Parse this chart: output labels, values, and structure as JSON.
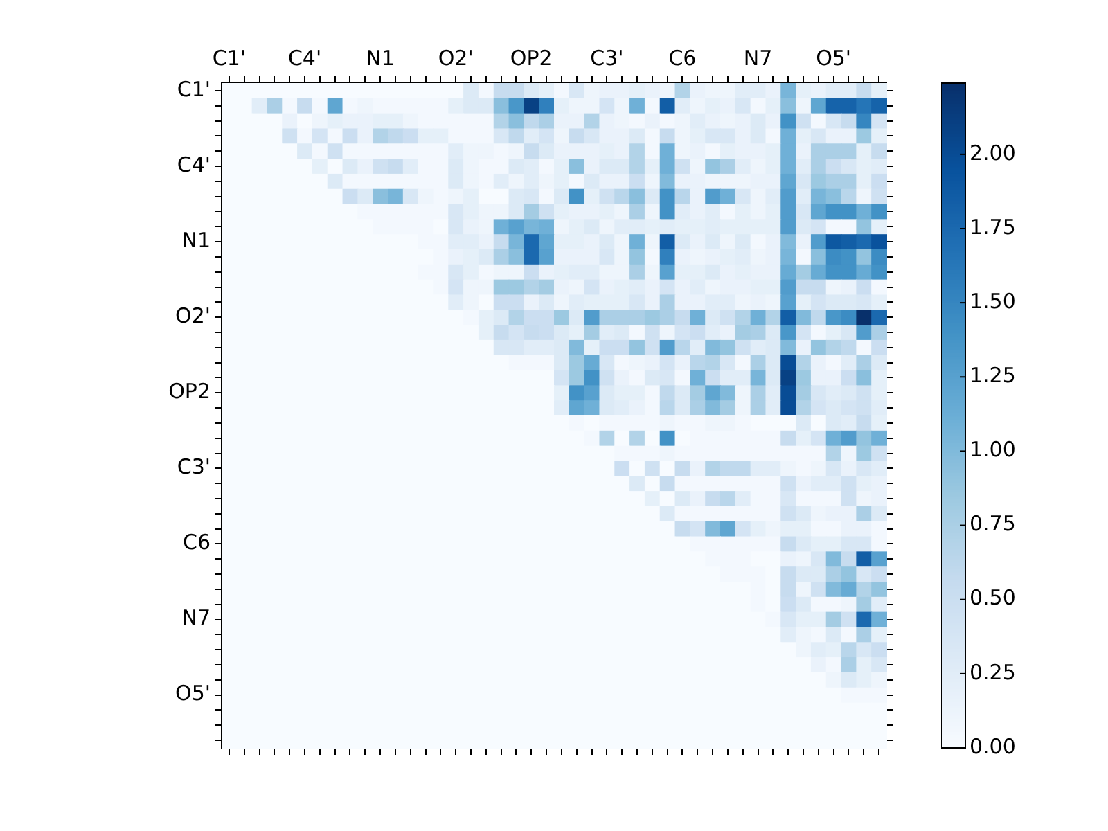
{
  "chart_data": {
    "type": "heatmap",
    "categories": [
      "C1'",
      null,
      null,
      null,
      null,
      "C4'",
      null,
      null,
      null,
      null,
      "N1",
      null,
      null,
      null,
      null,
      "O2'",
      null,
      null,
      null,
      null,
      "OP2",
      null,
      null,
      null,
      null,
      "C3'",
      null,
      null,
      null,
      null,
      "C6",
      null,
      null,
      null,
      null,
      "N7",
      null,
      null,
      null,
      null,
      "O5'",
      null,
      null,
      null
    ],
    "y_categories": [
      "C1'",
      null,
      null,
      null,
      null,
      "C4'",
      null,
      null,
      null,
      null,
      "N1",
      null,
      null,
      null,
      null,
      "O2'",
      null,
      null,
      null,
      null,
      "OP2",
      null,
      null,
      null,
      null,
      "C3'",
      null,
      null,
      null,
      null,
      "C6",
      null,
      null,
      null,
      null,
      "N7",
      null,
      null,
      null,
      null,
      "O5'",
      null,
      null,
      null
    ],
    "clim": [
      0,
      2.24
    ],
    "cticks": [
      {
        "value": 0,
        "label": "0.00"
      },
      {
        "value": 0.25,
        "label": "0.25"
      },
      {
        "value": 0.5,
        "label": "0.50"
      },
      {
        "value": 0.75,
        "label": "0.75"
      },
      {
        "value": 1,
        "label": "1.00"
      },
      {
        "value": 1.25,
        "label": "1.25"
      },
      {
        "value": 1.5,
        "label": "1.50"
      },
      {
        "value": 1.75,
        "label": "1.75"
      },
      {
        "value": 2,
        "label": "2.00"
      }
    ],
    "cells": [
      [
        0,
        0,
        0,
        0,
        0,
        0,
        0,
        0,
        0,
        0,
        0,
        0,
        0,
        0,
        0,
        0,
        0.3,
        0.05,
        0.55,
        0.55,
        0.3,
        0.2,
        0.05,
        0.35,
        0.1,
        0.15,
        0.15,
        0.2,
        0.15,
        0.1,
        0.7,
        0.15,
        0.1,
        0.1,
        0.25,
        0.25,
        0.15,
        1.05,
        0.2,
        0.15,
        0.25,
        0.25,
        0.55,
        0.2
      ],
      [
        0,
        0,
        0.25,
        0.75,
        0.05,
        0.55,
        0.05,
        1.2,
        0.05,
        0.1,
        0.05,
        0.05,
        0.05,
        0.05,
        0.05,
        0.2,
        0.3,
        0.3,
        0.95,
        1.35,
        2.1,
        1.55,
        0.2,
        0.1,
        0.1,
        0.4,
        0.1,
        1.1,
        0.05,
        1.85,
        0.25,
        0.1,
        0.2,
        0.15,
        0.35,
        0.05,
        0.2,
        0.95,
        0.1,
        1.2,
        1.8,
        1.8,
        1.65,
        1.8
      ],
      [
        0,
        0,
        0,
        0,
        0.15,
        0,
        0.1,
        0.2,
        0.15,
        0.15,
        0.2,
        0.2,
        0.1,
        0.05,
        0.05,
        0.05,
        0.05,
        0.05,
        0.7,
        0.95,
        0.6,
        0.75,
        0.15,
        0.15,
        0.7,
        0.15,
        0.1,
        0.05,
        0.15,
        0.05,
        0.1,
        0.25,
        0.15,
        0.1,
        0.15,
        0.3,
        0.15,
        1.4,
        0.45,
        0.05,
        0.35,
        0.55,
        1.5,
        0.4
      ],
      [
        0,
        0,
        0,
        0,
        0.45,
        0.05,
        0.4,
        0.05,
        0.5,
        0.15,
        0.7,
        0.6,
        0.5,
        0.2,
        0.2,
        0.05,
        0.05,
        0.05,
        0.35,
        0.6,
        0.25,
        0.4,
        0.1,
        0.55,
        0.35,
        0.15,
        0.15,
        0.3,
        0.05,
        0.55,
        0.1,
        0.2,
        0.35,
        0.35,
        0.15,
        0.3,
        0.05,
        1.1,
        0.2,
        0.35,
        0.15,
        0.15,
        0.85,
        0.2
      ],
      [
        0,
        0,
        0,
        0,
        0,
        0.3,
        0.05,
        0.45,
        0.05,
        0.05,
        0.05,
        0.05,
        0.05,
        0.05,
        0.05,
        0.25,
        0.1,
        0.1,
        0.05,
        0.1,
        0.55,
        0.3,
        0.15,
        0.15,
        0.15,
        0.2,
        0.15,
        0.7,
        0.05,
        1.1,
        0.1,
        0.15,
        0.05,
        0.2,
        0.15,
        0.15,
        0.2,
        1.1,
        0.15,
        0.75,
        0.75,
        0.75,
        0.2,
        0.55
      ],
      [
        0,
        0,
        0,
        0,
        0,
        0,
        0.2,
        0,
        0.3,
        0.15,
        0.45,
        0.55,
        0.25,
        0.05,
        0.05,
        0.3,
        0.1,
        0.05,
        0.05,
        0.3,
        0.25,
        0.05,
        0.2,
        0.95,
        0.15,
        0.3,
        0.3,
        0.7,
        0.2,
        1.1,
        0.45,
        0.1,
        0.9,
        0.75,
        0.25,
        0.1,
        0.2,
        1.1,
        0.25,
        0.75,
        0.5,
        0.35,
        0.2,
        0.25
      ],
      [
        0,
        0,
        0,
        0,
        0,
        0,
        0,
        0.3,
        0.05,
        0.05,
        0.05,
        0.05,
        0.05,
        0.05,
        0.05,
        0.3,
        0.1,
        0.05,
        0.25,
        0.1,
        0.25,
        0.1,
        0.2,
        0.05,
        0.3,
        0.15,
        0.15,
        0.5,
        0.1,
        1.0,
        0.15,
        0.15,
        0.1,
        0.1,
        0.1,
        0.15,
        0.15,
        1.2,
        0.35,
        0.85,
        0.75,
        0.75,
        0.2,
        0.5
      ],
      [
        0,
        0,
        0,
        0,
        0,
        0,
        0,
        0,
        0.5,
        0.3,
        0.95,
        1.05,
        0.35,
        0.1,
        0.05,
        0.1,
        0.2,
        0,
        0,
        0.3,
        0.35,
        0.05,
        0.3,
        1.4,
        0.2,
        0.45,
        0.65,
        0.95,
        0.3,
        1.4,
        0.65,
        0.15,
        1.3,
        1.1,
        0.35,
        0.1,
        0.25,
        1.3,
        0.25,
        1.05,
        0.95,
        0.65,
        0.1,
        0.45
      ],
      [
        0,
        0,
        0,
        0,
        0,
        0,
        0,
        0,
        0,
        0.05,
        0.05,
        0.05,
        0.05,
        0.05,
        0.05,
        0.35,
        0.2,
        0.1,
        0.1,
        0.3,
        0.8,
        0.45,
        0.2,
        0.15,
        0.15,
        0.2,
        0.1,
        0.75,
        0.1,
        1.4,
        0.25,
        0.15,
        0.25,
        0.05,
        0.2,
        0.1,
        0.2,
        1.3,
        0.35,
        1.2,
        1.4,
        1.4,
        1.1,
        1.4
      ],
      [
        0,
        0,
        0,
        0,
        0,
        0,
        0,
        0,
        0,
        0,
        0.05,
        0.05,
        0.05,
        0.05,
        0,
        0.35,
        0.15,
        0.1,
        1.1,
        1.25,
        1.05,
        1.1,
        0.1,
        0.2,
        0.3,
        0.1,
        0.25,
        0.25,
        0.2,
        0.25,
        0.2,
        0.2,
        0.25,
        0.2,
        0.2,
        0.2,
        0.2,
        1.3,
        0.3,
        0.4,
        0.05,
        0.05,
        0.9,
        0.2
      ],
      [
        0,
        0,
        0,
        0,
        0,
        0,
        0,
        0,
        0,
        0,
        0,
        0,
        0,
        0.05,
        0.05,
        0.25,
        0.25,
        0.15,
        0.55,
        1.05,
        1.75,
        1.2,
        0.2,
        0.2,
        0.15,
        0.3,
        0.1,
        1.1,
        0.1,
        1.85,
        0.3,
        0.15,
        0.3,
        0.1,
        0.3,
        0.05,
        0.15,
        1.0,
        0.15,
        1.3,
        1.9,
        1.85,
        1.75,
        1.95
      ],
      [
        0,
        0,
        0,
        0,
        0,
        0,
        0,
        0,
        0,
        0,
        0,
        0,
        0,
        0,
        0.05,
        0.15,
        0.2,
        0.3,
        0.75,
        0.95,
        1.75,
        1.25,
        0.15,
        0.15,
        0.15,
        0.35,
        0.1,
        0.9,
        0.05,
        1.55,
        0.15,
        0.1,
        0.15,
        0.2,
        0.25,
        0.1,
        0.15,
        1.05,
        0.05,
        0.95,
        1.45,
        1.4,
        0.9,
        1.45
      ],
      [
        0,
        0,
        0,
        0,
        0,
        0,
        0,
        0,
        0,
        0,
        0,
        0,
        0,
        0.05,
        0.05,
        0.35,
        0.2,
        0.05,
        0.1,
        0.1,
        0.5,
        0.15,
        0.2,
        0.25,
        0.25,
        0.1,
        0.1,
        0.75,
        0.1,
        1.25,
        0.2,
        0.2,
        0.3,
        0.15,
        0.2,
        0.15,
        0.15,
        1.15,
        0.8,
        1.15,
        1.4,
        1.4,
        1.15,
        1.4
      ],
      [
        0,
        0,
        0,
        0,
        0,
        0,
        0,
        0,
        0,
        0,
        0,
        0,
        0,
        0,
        0.05,
        0.4,
        0.1,
        0.1,
        0.85,
        0.85,
        0.7,
        0.8,
        0.15,
        0.1,
        0.4,
        0.15,
        0.2,
        0.25,
        0.15,
        0.4,
        0.15,
        0.25,
        0.1,
        0.15,
        0.15,
        0.2,
        0.2,
        1.3,
        0.55,
        0.55,
        0.1,
        0.15,
        0.5,
        0.05
      ],
      [
        0,
        0,
        0,
        0,
        0,
        0,
        0,
        0,
        0,
        0,
        0,
        0,
        0,
        0,
        0,
        0.25,
        0.1,
        0,
        0.5,
        0.5,
        0.15,
        0.3,
        0.1,
        0.25,
        0.2,
        0.2,
        0.2,
        0.35,
        0.15,
        0.75,
        0.15,
        0.15,
        0.25,
        0.25,
        0.1,
        0.15,
        0.1,
        1.25,
        0.2,
        0.4,
        0.3,
        0.3,
        0.35,
        0.2
      ],
      [
        0,
        0,
        0,
        0,
        0,
        0,
        0,
        0,
        0,
        0,
        0,
        0,
        0,
        0,
        0,
        0,
        0.05,
        0.2,
        0.3,
        0.7,
        0.5,
        0.5,
        0.85,
        0.3,
        1.3,
        0.75,
        0.75,
        0.75,
        0.85,
        0.75,
        0.55,
        1.1,
        0.3,
        0.45,
        0.7,
        1.1,
        0.7,
        1.85,
        1.0,
        0.6,
        1.35,
        1.45,
        2.24,
        1.75
      ],
      [
        0,
        0,
        0,
        0,
        0,
        0,
        0,
        0,
        0,
        0,
        0,
        0,
        0,
        0,
        0,
        0,
        0,
        0.2,
        0.55,
        0.4,
        0.55,
        0.5,
        0.3,
        0.2,
        0.8,
        0.25,
        0.3,
        0.05,
        0.45,
        0.1,
        0.4,
        0.5,
        0.25,
        0.15,
        0.8,
        0.75,
        0.3,
        1.35,
        0.4,
        0.05,
        0.2,
        0.35,
        1.3,
        0.75
      ],
      [
        0,
        0,
        0,
        0,
        0,
        0,
        0,
        0,
        0,
        0,
        0,
        0,
        0,
        0,
        0,
        0,
        0,
        0,
        0.35,
        0.35,
        0.25,
        0.25,
        0.3,
        1.0,
        0.2,
        0.5,
        0.5,
        0.9,
        0.45,
        1.3,
        0.65,
        0.25,
        1.0,
        0.9,
        0.45,
        0.25,
        0.3,
        1.0,
        0.15,
        0.9,
        0.7,
        0.6,
        0.05,
        0.5
      ],
      [
        0,
        0,
        0,
        0,
        0,
        0,
        0,
        0,
        0,
        0,
        0,
        0,
        0,
        0,
        0,
        0,
        0,
        0,
        0,
        0.05,
        0.05,
        0.05,
        0.3,
        0.85,
        1.15,
        0.35,
        0.05,
        0.1,
        0.15,
        0.4,
        0.15,
        0.65,
        0.7,
        0.35,
        0.05,
        0.75,
        0.3,
        2.0,
        0.7,
        0.15,
        0.05,
        0.25,
        0.75,
        0.3
      ],
      [
        0,
        0,
        0,
        0,
        0,
        0,
        0,
        0,
        0,
        0,
        0,
        0,
        0,
        0,
        0,
        0,
        0,
        0,
        0,
        0,
        0,
        0,
        0.4,
        0.85,
        1.4,
        0.45,
        0.15,
        0.05,
        0.3,
        0.35,
        0.05,
        1.1,
        0.5,
        0.25,
        0.25,
        1.05,
        0.3,
        2.1,
        0.85,
        0.15,
        0.15,
        0.5,
        0.95,
        0.2
      ],
      [
        0,
        0,
        0,
        0,
        0,
        0,
        0,
        0,
        0,
        0,
        0,
        0,
        0,
        0,
        0,
        0,
        0,
        0,
        0,
        0,
        0,
        0,
        0.2,
        1.4,
        1.25,
        0.3,
        0.2,
        0.2,
        0.05,
        0.6,
        0.3,
        0.8,
        1.2,
        1.0,
        0.1,
        0.75,
        0.25,
        2.0,
        0.8,
        0.35,
        0.25,
        0.3,
        0.45,
        0.2
      ],
      [
        0,
        0,
        0,
        0,
        0,
        0,
        0,
        0,
        0,
        0,
        0,
        0,
        0,
        0,
        0,
        0,
        0,
        0,
        0,
        0,
        0,
        0,
        0.25,
        1.2,
        1.1,
        0.3,
        0.25,
        0.15,
        0.05,
        0.65,
        0.3,
        0.75,
        1.0,
        0.8,
        0.1,
        0.75,
        0.25,
        2.0,
        0.7,
        0.4,
        0.3,
        0.4,
        0.45,
        0.25
      ],
      [
        0,
        0,
        0,
        0,
        0,
        0,
        0,
        0,
        0,
        0,
        0,
        0,
        0,
        0,
        0,
        0,
        0,
        0,
        0,
        0,
        0,
        0,
        0,
        0.05,
        0,
        0.05,
        0.05,
        0.05,
        0.05,
        0.1,
        0.05,
        0.05,
        0.1,
        0.1,
        0.05,
        0,
        0,
        0,
        0.3,
        0,
        0.3,
        0.25,
        0.55,
        0.2
      ],
      [
        0,
        0,
        0,
        0,
        0,
        0,
        0,
        0,
        0,
        0,
        0,
        0,
        0,
        0,
        0,
        0,
        0,
        0,
        0,
        0,
        0,
        0,
        0,
        0,
        0.05,
        0.7,
        0,
        0.7,
        0,
        1.4,
        0,
        0.05,
        0.05,
        0.05,
        0.05,
        0.05,
        0.05,
        0.55,
        0.2,
        0.4,
        1.1,
        1.3,
        0.9,
        1.1
      ],
      [
        0,
        0,
        0,
        0,
        0,
        0,
        0,
        0,
        0,
        0,
        0,
        0,
        0,
        0,
        0,
        0,
        0,
        0,
        0,
        0,
        0,
        0,
        0,
        0,
        0,
        0,
        0.05,
        0.05,
        0.05,
        0.1,
        0.05,
        0.05,
        0.05,
        0.05,
        0.05,
        0.05,
        0.05,
        0.05,
        0.05,
        0.05,
        0.7,
        0.1,
        0.85,
        0.45
      ],
      [
        0,
        0,
        0,
        0,
        0,
        0,
        0,
        0,
        0,
        0,
        0,
        0,
        0,
        0,
        0,
        0,
        0,
        0,
        0,
        0,
        0,
        0,
        0,
        0,
        0,
        0,
        0.5,
        0,
        0.45,
        0,
        0.55,
        0.15,
        0.7,
        0.6,
        0.6,
        0.25,
        0.25,
        0.1,
        0.05,
        0.1,
        0.35,
        0.15,
        0.35,
        0.25
      ],
      [
        0,
        0,
        0,
        0,
        0,
        0,
        0,
        0,
        0,
        0,
        0,
        0,
        0,
        0,
        0,
        0,
        0,
        0,
        0,
        0,
        0,
        0,
        0,
        0,
        0,
        0,
        0,
        0.3,
        0,
        0.55,
        0.05,
        0.05,
        0.05,
        0.05,
        0.05,
        0.05,
        0.05,
        0.45,
        0.15,
        0.25,
        0.25,
        0.45,
        0.2,
        0.15
      ],
      [
        0,
        0,
        0,
        0,
        0,
        0,
        0,
        0,
        0,
        0,
        0,
        0,
        0,
        0,
        0,
        0,
        0,
        0,
        0,
        0,
        0,
        0,
        0,
        0,
        0,
        0,
        0,
        0,
        0.2,
        0,
        0.3,
        0.15,
        0.55,
        0.65,
        0.25,
        0.05,
        0.05,
        0.35,
        0.05,
        0.05,
        0.05,
        0.45,
        0.1,
        0.15
      ],
      [
        0,
        0,
        0,
        0,
        0,
        0,
        0,
        0,
        0,
        0,
        0,
        0,
        0,
        0,
        0,
        0,
        0,
        0,
        0,
        0,
        0,
        0,
        0,
        0,
        0,
        0,
        0,
        0,
        0,
        0.3,
        0.05,
        0.05,
        0.05,
        0.05,
        0.05,
        0.05,
        0.05,
        0.45,
        0.3,
        0.1,
        0.15,
        0.15,
        0.75,
        0.3
      ],
      [
        0,
        0,
        0,
        0,
        0,
        0,
        0,
        0,
        0,
        0,
        0,
        0,
        0,
        0,
        0,
        0,
        0,
        0,
        0,
        0,
        0,
        0,
        0,
        0,
        0,
        0,
        0,
        0,
        0,
        0,
        0.55,
        0.4,
        1.0,
        1.2,
        0.4,
        0.2,
        0.1,
        0.2,
        0.2,
        0.05,
        0.05,
        0.15,
        0.15,
        0.05
      ],
      [
        0,
        0,
        0,
        0,
        0,
        0,
        0,
        0,
        0,
        0,
        0,
        0,
        0,
        0,
        0,
        0,
        0,
        0,
        0,
        0,
        0,
        0,
        0,
        0,
        0,
        0,
        0,
        0,
        0,
        0,
        0,
        0.05,
        0.05,
        0.05,
        0.05,
        0.05,
        0.05,
        0.55,
        0.3,
        0.2,
        0.2,
        0.35,
        0.35,
        0.05
      ],
      [
        0,
        0,
        0,
        0,
        0,
        0,
        0,
        0,
        0,
        0,
        0,
        0,
        0,
        0,
        0,
        0,
        0,
        0,
        0,
        0,
        0,
        0,
        0,
        0,
        0,
        0,
        0,
        0,
        0,
        0,
        0,
        0,
        0.05,
        0.05,
        0.05,
        0,
        0,
        0.15,
        0.1,
        0.35,
        1.0,
        0.55,
        1.85,
        1.25
      ],
      [
        0,
        0,
        0,
        0,
        0,
        0,
        0,
        0,
        0,
        0,
        0,
        0,
        0,
        0,
        0,
        0,
        0,
        0,
        0,
        0,
        0,
        0,
        0,
        0,
        0,
        0,
        0,
        0,
        0,
        0,
        0,
        0,
        0,
        0.05,
        0.05,
        0.05,
        0,
        0.55,
        0.3,
        0.3,
        0.75,
        0.9,
        0.35,
        0.5
      ],
      [
        0,
        0,
        0,
        0,
        0,
        0,
        0,
        0,
        0,
        0,
        0,
        0,
        0,
        0,
        0,
        0,
        0,
        0,
        0,
        0,
        0,
        0,
        0,
        0,
        0,
        0,
        0,
        0,
        0,
        0,
        0,
        0,
        0,
        0,
        0,
        0.05,
        0,
        0.55,
        0.1,
        0.45,
        1.0,
        1.15,
        0.7,
        0.9
      ],
      [
        0,
        0,
        0,
        0,
        0,
        0,
        0,
        0,
        0,
        0,
        0,
        0,
        0,
        0,
        0,
        0,
        0,
        0,
        0,
        0,
        0,
        0,
        0,
        0,
        0,
        0,
        0,
        0,
        0,
        0,
        0,
        0,
        0,
        0,
        0,
        0.05,
        0,
        0.5,
        0.3,
        0.05,
        0.05,
        0.1,
        0.8,
        0.25
      ],
      [
        0,
        0,
        0,
        0,
        0,
        0,
        0,
        0,
        0,
        0,
        0,
        0,
        0,
        0,
        0,
        0,
        0,
        0,
        0,
        0,
        0,
        0,
        0,
        0,
        0,
        0,
        0,
        0,
        0,
        0,
        0,
        0,
        0,
        0,
        0,
        0,
        0.05,
        0.35,
        0.2,
        0.2,
        0.8,
        0.45,
        1.75,
        1.1
      ],
      [
        0,
        0,
        0,
        0,
        0,
        0,
        0,
        0,
        0,
        0,
        0,
        0,
        0,
        0,
        0,
        0,
        0,
        0,
        0,
        0,
        0,
        0,
        0,
        0,
        0,
        0,
        0,
        0,
        0,
        0,
        0,
        0,
        0,
        0,
        0,
        0,
        0,
        0.25,
        0.1,
        0.05,
        0.3,
        0.05,
        0.75,
        0.2
      ],
      [
        0,
        0,
        0,
        0,
        0,
        0,
        0,
        0,
        0,
        0,
        0,
        0,
        0,
        0,
        0,
        0,
        0,
        0,
        0,
        0,
        0,
        0,
        0,
        0,
        0,
        0,
        0,
        0,
        0,
        0,
        0,
        0,
        0,
        0,
        0,
        0,
        0,
        0,
        0.1,
        0.25,
        0.2,
        0.65,
        0.35,
        0.5
      ],
      [
        0,
        0,
        0,
        0,
        0,
        0,
        0,
        0,
        0,
        0,
        0,
        0,
        0,
        0,
        0,
        0,
        0,
        0,
        0,
        0,
        0,
        0,
        0,
        0,
        0,
        0,
        0,
        0,
        0,
        0,
        0,
        0,
        0,
        0,
        0,
        0,
        0,
        0,
        0,
        0.15,
        0.05,
        0.75,
        0.2,
        0.35
      ],
      [
        0,
        0,
        0,
        0,
        0,
        0,
        0,
        0,
        0,
        0,
        0,
        0,
        0,
        0,
        0,
        0,
        0,
        0,
        0,
        0,
        0,
        0,
        0,
        0,
        0,
        0,
        0,
        0,
        0,
        0,
        0,
        0,
        0,
        0,
        0,
        0,
        0,
        0,
        0,
        0,
        0.1,
        0.3,
        0.2,
        0.1
      ],
      [
        0,
        0,
        0,
        0,
        0,
        0,
        0,
        0,
        0,
        0,
        0,
        0,
        0,
        0,
        0,
        0,
        0,
        0,
        0,
        0,
        0,
        0,
        0,
        0,
        0,
        0,
        0,
        0,
        0,
        0,
        0,
        0,
        0,
        0,
        0,
        0,
        0,
        0,
        0,
        0,
        0,
        0.05,
        0.05,
        0.05
      ],
      [
        0,
        0,
        0,
        0,
        0,
        0,
        0,
        0,
        0,
        0,
        0,
        0,
        0,
        0,
        0,
        0,
        0,
        0,
        0,
        0,
        0,
        0,
        0,
        0,
        0,
        0,
        0,
        0,
        0,
        0,
        0,
        0,
        0,
        0,
        0,
        0,
        0,
        0,
        0,
        0,
        0,
        0,
        0,
        0
      ],
      [
        0,
        0,
        0,
        0,
        0,
        0,
        0,
        0,
        0,
        0,
        0,
        0,
        0,
        0,
        0,
        0,
        0,
        0,
        0,
        0,
        0,
        0,
        0,
        0,
        0,
        0,
        0,
        0,
        0,
        0,
        0,
        0,
        0,
        0,
        0,
        0,
        0,
        0,
        0,
        0,
        0,
        0,
        0,
        0
      ],
      [
        0,
        0,
        0,
        0,
        0,
        0,
        0,
        0,
        0,
        0,
        0,
        0,
        0,
        0,
        0,
        0,
        0,
        0,
        0,
        0,
        0,
        0,
        0,
        0,
        0,
        0,
        0,
        0,
        0,
        0,
        0,
        0,
        0,
        0,
        0,
        0,
        0,
        0,
        0,
        0,
        0,
        0,
        0,
        0
      ]
    ]
  }
}
